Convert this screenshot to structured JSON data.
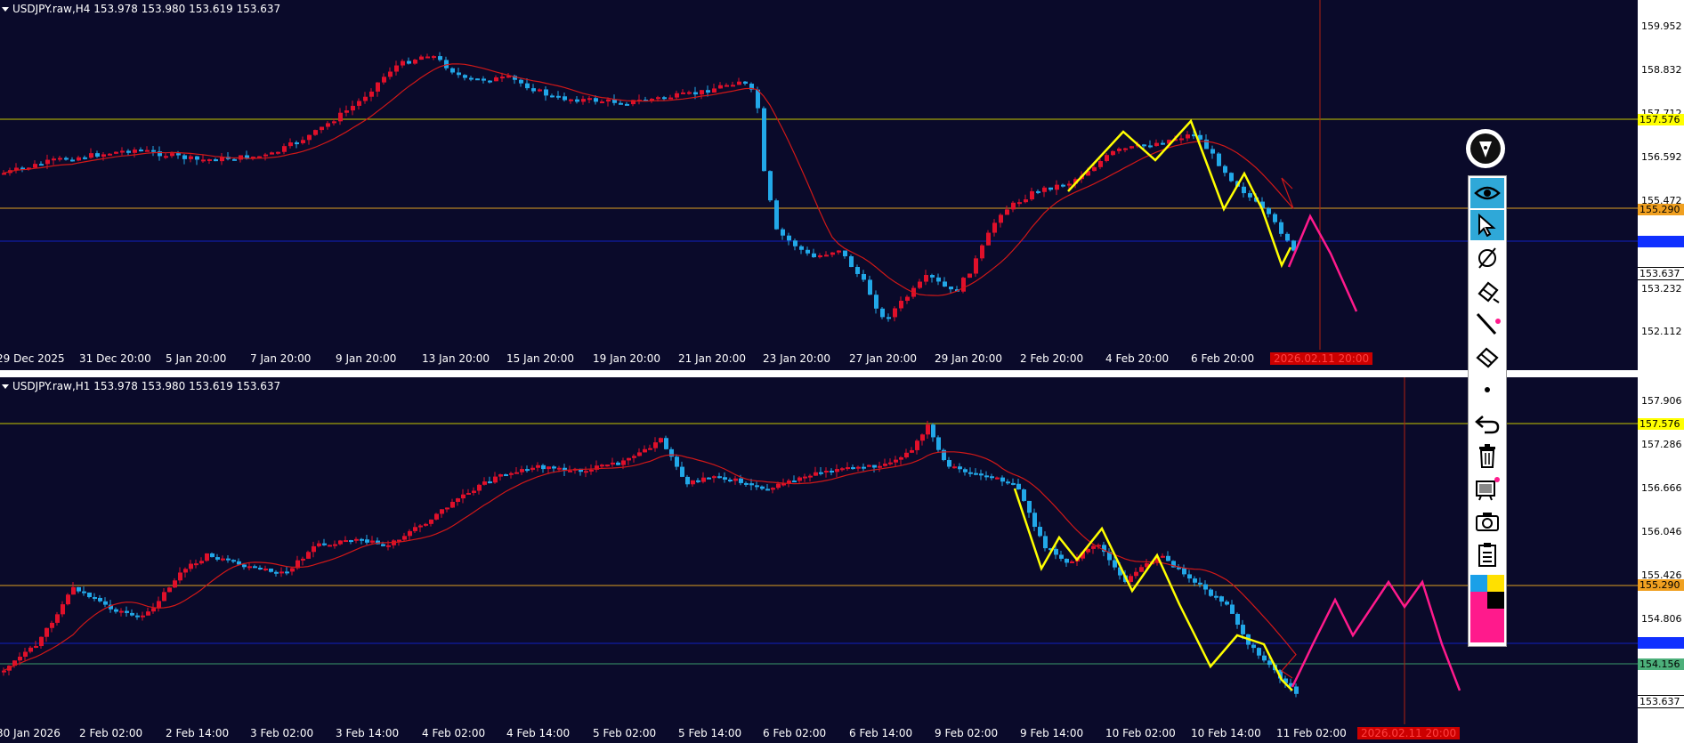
{
  "top_chart": {
    "title": "USDJPY.raw,H4  153.978 153.980 153.619 153.637",
    "price_labels": [
      "159.952",
      "158.832",
      "157.712",
      "156.592",
      "155.472",
      "153.232",
      "152.112"
    ],
    "tag_h_yellow": "157.576",
    "tag_h_orange": "155.290",
    "tag_h_blue": "154.156",
    "tag_current": "153.637",
    "time_labels": [
      "29 Dec 2025",
      "31 Dec 20:00",
      "5 Jan 20:00",
      "7 Jan 20:00",
      "9 Jan 20:00",
      "13 Jan 20:00",
      "15 Jan 20:00",
      "19 Jan 20:00",
      "21 Jan 20:00",
      "23 Jan 20:00",
      "27 Jan 20:00",
      "29 Jan 20:00",
      "2 Feb 20:00",
      "4 Feb 20:00",
      "6 Feb 20:00"
    ],
    "cursor_time": "2026.02.11 20:00"
  },
  "bottom_chart": {
    "title": "USDJPY.raw,H1  153.978 153.980 153.619 153.637",
    "price_labels": [
      "157.906",
      "157.286",
      "156.666",
      "156.046",
      "155.426",
      "154.806"
    ],
    "tag_h_yellow": "157.576",
    "tag_h_orange": "155.290",
    "tag_h_blue": "154.156",
    "tag_h_green": "154.156",
    "tag_current": "153.637",
    "time_labels": [
      "30 Jan 2026",
      "2 Feb 02:00",
      "2 Feb 14:00",
      "3 Feb 02:00",
      "3 Feb 14:00",
      "4 Feb 02:00",
      "4 Feb 14:00",
      "5 Feb 02:00",
      "5 Feb 14:00",
      "6 Feb 02:00",
      "6 Feb 14:00",
      "9 Feb 02:00",
      "9 Feb 14:00",
      "10 Feb 02:00",
      "10 Feb 14:00",
      "11 Feb 02:00"
    ],
    "cursor_time": "2026.02.11 20:00"
  },
  "colors": {
    "bg": "#0a0a2a",
    "bull": "#e0102a",
    "bear": "#22a8e8",
    "ma": "#d01818",
    "zigzag": "#ffff00",
    "projection": "#ff1a8c",
    "h_yellow": "#c8c800",
    "h_orange": "#e0a020",
    "h_blue": "#1020c0",
    "h_green": "#3a9a6a",
    "cursor_line": "#b02010"
  },
  "toolbar": {
    "icons": [
      "pen-logo-icon",
      "eye-icon",
      "cursor-arrow-icon",
      "compass-icon",
      "eraser-icon",
      "line-tool-icon",
      "highlighter-icon",
      "dot-size-icon",
      "undo-icon",
      "trash-icon",
      "screen-icon",
      "camera-icon",
      "clipboard-icon",
      "color-palette-icon"
    ]
  }
}
